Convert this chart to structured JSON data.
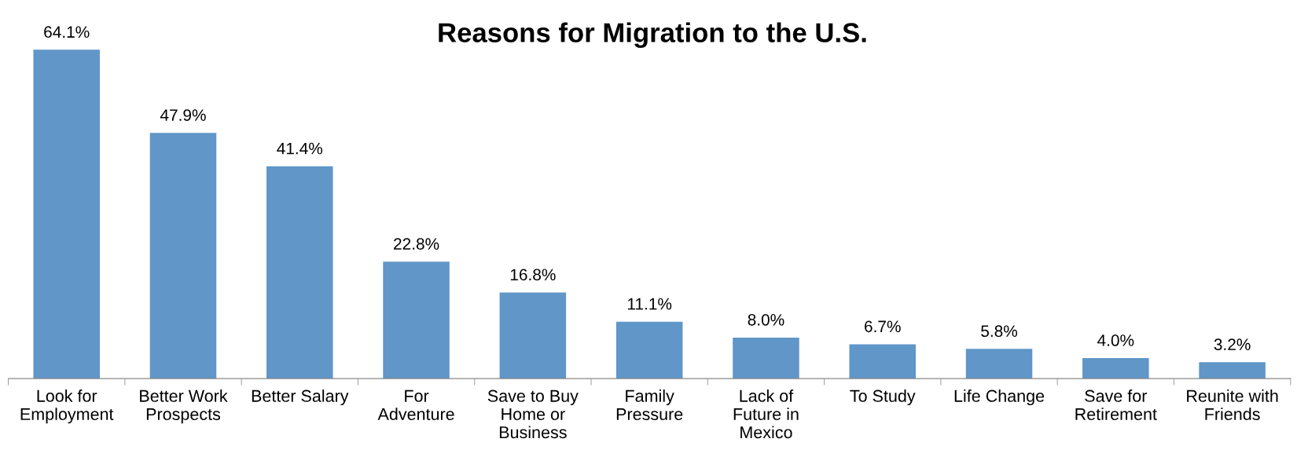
{
  "chart_data": {
    "type": "bar",
    "title": "Reasons for Migration to the U.S.",
    "categories": [
      "Look for\nEmployment",
      "Better Work\nProspects",
      "Better Salary",
      "For\nAdventure",
      "Save to Buy\nHome or\nBusiness",
      "Family\nPressure",
      "Lack of\nFuture in\nMexico",
      "To Study",
      "Life Change",
      "Save for\nRetirement",
      "Reunite with\nFriends"
    ],
    "values": [
      64.1,
      47.9,
      41.4,
      22.8,
      16.8,
      11.1,
      8.0,
      6.7,
      5.8,
      4.0,
      3.2
    ],
    "value_labels": [
      "64.1%",
      "47.9%",
      "41.4%",
      "22.8%",
      "16.8%",
      "11.1%",
      "8.0%",
      "6.7%",
      "5.8%",
      "4.0%",
      "3.2%"
    ],
    "color": "#6096c8",
    "grid": false,
    "legend": false
  }
}
